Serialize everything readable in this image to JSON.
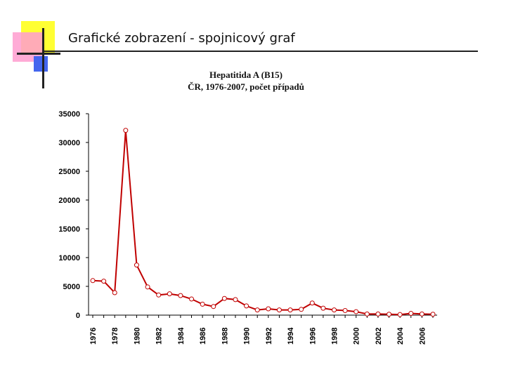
{
  "slide": {
    "title": "Grafické zobrazení - spojnicový graf"
  },
  "colors": {
    "series": "#c00000",
    "marker_fill": "#ffffff",
    "axis": "#000000",
    "deco_yellow": "#ffff33",
    "deco_pink": "#ff9ccf",
    "deco_blue": "#4466ee"
  },
  "chart_data": {
    "type": "line",
    "title": "Hepatitida A (B15)",
    "subtitle": "ČR, 1976-2007, počet případů",
    "xlabel": "",
    "ylabel": "",
    "ylim": [
      0,
      35000
    ],
    "yticks": [
      0,
      5000,
      10000,
      15000,
      20000,
      25000,
      30000,
      35000
    ],
    "grid": false,
    "legend": "none",
    "x": [
      1976,
      1977,
      1978,
      1979,
      1980,
      1981,
      1982,
      1983,
      1984,
      1985,
      1986,
      1987,
      1988,
      1989,
      1990,
      1991,
      1992,
      1993,
      1994,
      1995,
      1996,
      1997,
      1998,
      1999,
      2000,
      2001,
      2002,
      2003,
      2004,
      2005,
      2006,
      2007
    ],
    "xtick_labels": [
      "1976",
      "1978",
      "1980",
      "1982",
      "1984",
      "1986",
      "1988",
      "1990",
      "1992",
      "1994",
      "1996",
      "1998",
      "2000",
      "2002",
      "2004",
      "2006"
    ],
    "series": [
      {
        "values": [
          6000,
          5900,
          3900,
          32100,
          8700,
          4900,
          3500,
          3700,
          3400,
          2800,
          1900,
          1500,
          2900,
          2700,
          1600,
          900,
          1100,
          900,
          900,
          1000,
          2100,
          1200,
          900,
          800,
          600,
          200,
          200,
          150,
          100,
          300,
          200,
          150
        ]
      }
    ]
  }
}
